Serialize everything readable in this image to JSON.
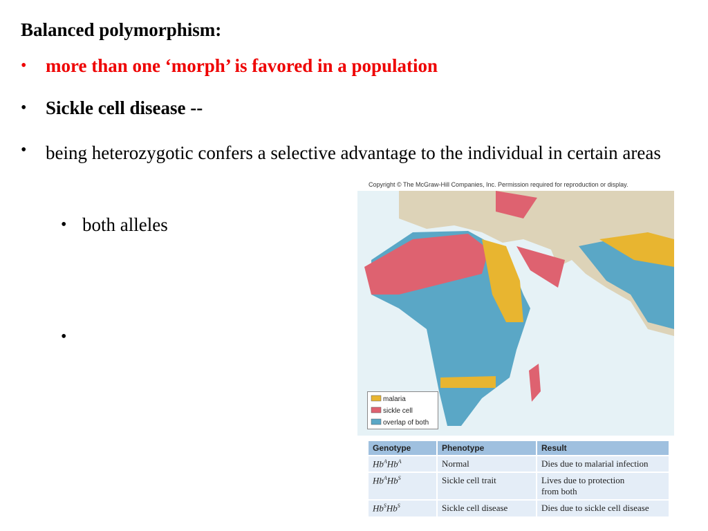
{
  "slide": {
    "title": "Balanced polymorphism:",
    "bullets": [
      "more than one ‘morph’ is favored in a population",
      "Sickle cell disease --",
      "being heterozygotic confers a selective advantage to the individual in certain areas"
    ],
    "sub_bullets": [
      "both alleles",
      ""
    ]
  },
  "figure": {
    "copyright": "Copyright © The McGraw-Hill Companies, Inc. Permission required for reproduction or display.",
    "legend": [
      "malaria",
      "sickle cell",
      "overlap of both"
    ],
    "table": {
      "header": [
        "Genotype",
        "Phenotype",
        "Result"
      ],
      "rows": [
        {
          "genotype": [
            [
              "Hb",
              "A"
            ],
            [
              "Hb",
              "A"
            ]
          ],
          "phenotype": "Normal",
          "result": [
            "Dies due to malarial infection"
          ]
        },
        {
          "genotype": [
            [
              "Hb",
              "A"
            ],
            [
              "Hb",
              "S"
            ]
          ],
          "phenotype": "Sickle cell trait",
          "result": [
            "Lives due to protection",
            "from both"
          ]
        },
        {
          "genotype": [
            [
              "Hb",
              "S"
            ],
            [
              "Hb",
              "S"
            ]
          ],
          "phenotype": "Sickle cell disease",
          "result": [
            "Dies due to sickle cell disease"
          ]
        }
      ]
    }
  }
}
